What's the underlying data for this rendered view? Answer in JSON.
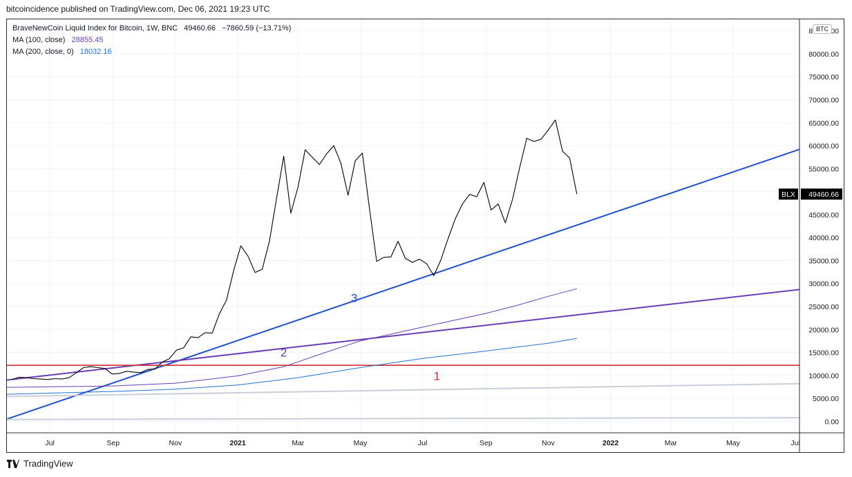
{
  "publish_line": "bitcoincidence published on TradingView.com, Dec 06, 2021 19:23 UTC",
  "legend": {
    "title": "BraveNewCoin Liquid Index for Bitcoin, 1W, BNC",
    "price": "49460.66",
    "change": "−7860.59 (−13.71%)",
    "ma100_label": "MA (100, close)",
    "ma100_value": "28855.45",
    "ma200_label": "MA (200, close, 0)",
    "ma200_value": "18032.16"
  },
  "currency_badge": "BTC",
  "price_tag": {
    "symbol": "BLX",
    "value": "49460.66"
  },
  "footer": {
    "brand": "TradingView"
  },
  "colors": {
    "price": "#000000",
    "ma100": "#6a3db8",
    "ma200": "#1e72d8",
    "trend_blue": "#1d4fd1",
    "trend_purple": "#6a3db8",
    "horizontal_red": "#d32f2f",
    "gray_lines": "#c9ced9"
  },
  "chart_data": {
    "type": "line",
    "ylim": [
      -2500,
      87500
    ],
    "y_ticks": [
      0,
      5000,
      10000,
      15000,
      20000,
      25000,
      30000,
      35000,
      40000,
      45000,
      50000,
      55000,
      60000,
      65000,
      70000,
      75000,
      80000,
      85000
    ],
    "y_tick_labels": [
      "0.00",
      "5000.00",
      "10000.00",
      "15000.00",
      "20000.00",
      "25000.00",
      "30000.00",
      "35000.00",
      "40000.00",
      "45000.00",
      "50000.00",
      "55000.00",
      "60000.00",
      "65000.00",
      "70000.00",
      "75000.00",
      "80000.00",
      "85000.00"
    ],
    "xlim": [
      "2020-05-20",
      "2022-07-05"
    ],
    "x_ticks": [
      {
        "date": "2020-07-01",
        "label": "Jul",
        "bold": false
      },
      {
        "date": "2020-09-01",
        "label": "Sep",
        "bold": false
      },
      {
        "date": "2020-11-01",
        "label": "Nov",
        "bold": false
      },
      {
        "date": "2021-01-01",
        "label": "2021",
        "bold": true
      },
      {
        "date": "2021-03-01",
        "label": "Mar",
        "bold": false
      },
      {
        "date": "2021-05-01",
        "label": "May",
        "bold": false
      },
      {
        "date": "2021-07-01",
        "label": "Jul",
        "bold": false
      },
      {
        "date": "2021-09-01",
        "label": "Sep",
        "bold": false
      },
      {
        "date": "2021-11-01",
        "label": "Nov",
        "bold": false
      },
      {
        "date": "2022-01-01",
        "label": "2022",
        "bold": true
      },
      {
        "date": "2022-03-01",
        "label": "Mar",
        "bold": false
      },
      {
        "date": "2022-05-01",
        "label": "May",
        "bold": false
      },
      {
        "date": "2022-07-01",
        "label": "Jul",
        "bold": false
      }
    ],
    "series": [
      {
        "name": "BLX",
        "color": "#000000",
        "x": [
          "2020-05-25",
          "2020-06-01",
          "2020-06-08",
          "2020-06-15",
          "2020-06-22",
          "2020-06-29",
          "2020-07-06",
          "2020-07-13",
          "2020-07-20",
          "2020-07-27",
          "2020-08-03",
          "2020-08-10",
          "2020-08-17",
          "2020-08-24",
          "2020-08-31",
          "2020-09-07",
          "2020-09-14",
          "2020-09-21",
          "2020-09-28",
          "2020-10-05",
          "2020-10-12",
          "2020-10-19",
          "2020-10-26",
          "2020-11-02",
          "2020-11-09",
          "2020-11-16",
          "2020-11-23",
          "2020-11-30",
          "2020-12-07",
          "2020-12-14",
          "2020-12-21",
          "2020-12-28",
          "2021-01-04",
          "2021-01-11",
          "2021-01-18",
          "2021-01-25",
          "2021-02-01",
          "2021-02-08",
          "2021-02-15",
          "2021-02-22",
          "2021-03-01",
          "2021-03-08",
          "2021-03-15",
          "2021-03-22",
          "2021-03-29",
          "2021-04-05",
          "2021-04-12",
          "2021-04-19",
          "2021-04-26",
          "2021-05-03",
          "2021-05-10",
          "2021-05-17",
          "2021-05-24",
          "2021-05-31",
          "2021-06-07",
          "2021-06-14",
          "2021-06-21",
          "2021-06-28",
          "2021-07-05",
          "2021-07-12",
          "2021-07-19",
          "2021-07-26",
          "2021-08-02",
          "2021-08-09",
          "2021-08-16",
          "2021-08-23",
          "2021-08-30",
          "2021-09-06",
          "2021-09-13",
          "2021-09-20",
          "2021-09-27",
          "2021-10-04",
          "2021-10-11",
          "2021-10-18",
          "2021-10-25",
          "2021-11-01",
          "2021-11-08",
          "2021-11-15",
          "2021-11-22",
          "2021-11-29"
        ],
        "values": [
          9100,
          9600,
          9500,
          9300,
          9200,
          9100,
          9300,
          9200,
          9500,
          10600,
          11700,
          11900,
          11700,
          11500,
          10300,
          10400,
          10900,
          10700,
          10600,
          11300,
          11400,
          12900,
          13600,
          15500,
          16000,
          18400,
          18200,
          19300,
          19200,
          23400,
          26400,
          32800,
          38200,
          36000,
          32400,
          33100,
          39200,
          48500,
          57700,
          45300,
          51000,
          59100,
          57500,
          55900,
          58200,
          60000,
          56200,
          49200,
          56700,
          58400,
          46300,
          34800,
          35700,
          35800,
          39200,
          35500,
          34600,
          35300,
          34300,
          31700,
          35200,
          39800,
          44100,
          47300,
          49400,
          48900,
          52000,
          46000,
          47300,
          43200,
          48300,
          55200,
          61600,
          60900,
          61400,
          63400,
          65600,
          58800,
          57300,
          49460.66
        ]
      },
      {
        "name": "MA (100, close)",
        "color": "#6a3db8",
        "x": [
          "2020-05-20",
          "2020-09-01",
          "2020-11-01",
          "2021-01-01",
          "2021-02-15",
          "2021-04-01",
          "2021-05-01",
          "2021-07-01",
          "2021-09-01",
          "2021-10-01",
          "2021-11-01",
          "2021-11-29"
        ],
        "values": [
          7400,
          7700,
          8300,
          9900,
          11900,
          15300,
          17500,
          20500,
          23500,
          25200,
          27200,
          28855.45
        ]
      },
      {
        "name": "MA (200, close, 0)",
        "color": "#1e72d8",
        "x": [
          "2020-05-20",
          "2020-09-01",
          "2020-11-01",
          "2021-01-01",
          "2021-03-01",
          "2021-05-01",
          "2021-07-01",
          "2021-09-01",
          "2021-11-01",
          "2021-11-29"
        ],
        "values": [
          5900,
          6500,
          7000,
          7900,
          9500,
          11700,
          13700,
          15300,
          17000,
          18032.16
        ]
      }
    ],
    "trend_lines": [
      {
        "color": "#1d4fd1",
        "from": {
          "x": "2020-05-20",
          "y": 500
        },
        "to": {
          "x": "2022-07-05",
          "y": 59200
        }
      },
      {
        "color": "#6a3db8",
        "from": {
          "x": "2020-05-20",
          "y": 9000
        },
        "to": {
          "x": "2022-07-05",
          "y": 28700
        }
      },
      {
        "color": "#d32f2f",
        "from": {
          "x": "2020-05-20",
          "y": 12200
        },
        "to": {
          "x": "2022-07-05",
          "y": 12200
        }
      },
      {
        "color": "#c9ced9",
        "from": {
          "x": "2020-05-20",
          "y": 5400
        },
        "to": {
          "x": "2022-07-05",
          "y": 8200
        }
      },
      {
        "color": "#c9ced9",
        "from": {
          "x": "2020-05-20",
          "y": 400
        },
        "to": {
          "x": "2022-07-05",
          "y": 800
        }
      }
    ],
    "annotations": [
      {
        "text": "1",
        "color": "#d32f2f",
        "x": "2021-07-15",
        "y": 9900
      },
      {
        "text": "2",
        "color": "#6a3db8",
        "x": "2021-02-15",
        "y": 15000
      },
      {
        "text": "3",
        "color": "#1d4fd1",
        "x": "2021-04-25",
        "y": 26900
      }
    ]
  }
}
